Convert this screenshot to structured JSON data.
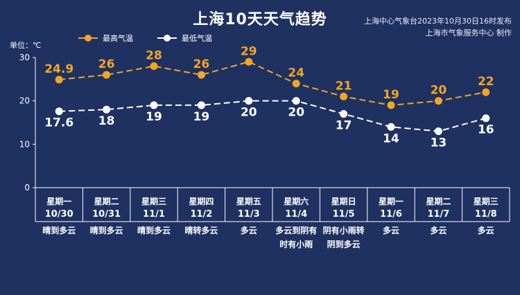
{
  "title": "上海10天天气趋势",
  "source": [
    "上海中心气象台2023年10月30日16时发布",
    "上海市气象服务中心 制作"
  ],
  "unit_label": "单位：℃",
  "colors": {
    "background": "#1f3161",
    "high": "#f5a623",
    "low": "#ffffff"
  },
  "chart_data": {
    "type": "line",
    "ylim": [
      0,
      30
    ],
    "yticks": [
      0,
      10,
      20,
      30
    ],
    "legend_position": "top-left",
    "series": [
      {
        "name": "最高气温",
        "values": [
          24.9,
          26,
          28,
          26,
          29,
          24,
          21,
          19,
          20,
          22
        ],
        "labels": [
          "24.9",
          "26",
          "28",
          "26",
          "29",
          "24",
          "21",
          "19",
          "20",
          "22"
        ]
      },
      {
        "name": "最低气温",
        "values": [
          17.6,
          18,
          19,
          19,
          20,
          20,
          17,
          14,
          13,
          16
        ],
        "labels": [
          "17.6",
          "18",
          "19",
          "19",
          "20",
          "20",
          "17",
          "14",
          "13",
          "16"
        ]
      }
    ],
    "categories": [
      "星期一",
      "星期二",
      "星期三",
      "星期四",
      "星期五",
      "星期六",
      "星期日",
      "星期一",
      "星期二",
      "星期三"
    ]
  },
  "days": [
    {
      "weekday": "星期一",
      "date": "10/30",
      "weather": "晴到多云"
    },
    {
      "weekday": "星期二",
      "date": "10/31",
      "weather": "晴到多云"
    },
    {
      "weekday": "星期三",
      "date": "11/1",
      "weather": "晴到多云"
    },
    {
      "weekday": "星期四",
      "date": "11/2",
      "weather": "晴转多云"
    },
    {
      "weekday": "星期五",
      "date": "11/3",
      "weather": "多云"
    },
    {
      "weekday": "星期六",
      "date": "11/4",
      "weather": "多云到阴有\n时有小雨"
    },
    {
      "weekday": "星期日",
      "date": "11/5",
      "weather": "阴有小雨转\n阴到多云"
    },
    {
      "weekday": "星期一",
      "date": "11/6",
      "weather": "多云"
    },
    {
      "weekday": "星期二",
      "date": "11/7",
      "weather": "多云"
    },
    {
      "weekday": "星期三",
      "date": "11/8",
      "weather": "多云"
    }
  ]
}
